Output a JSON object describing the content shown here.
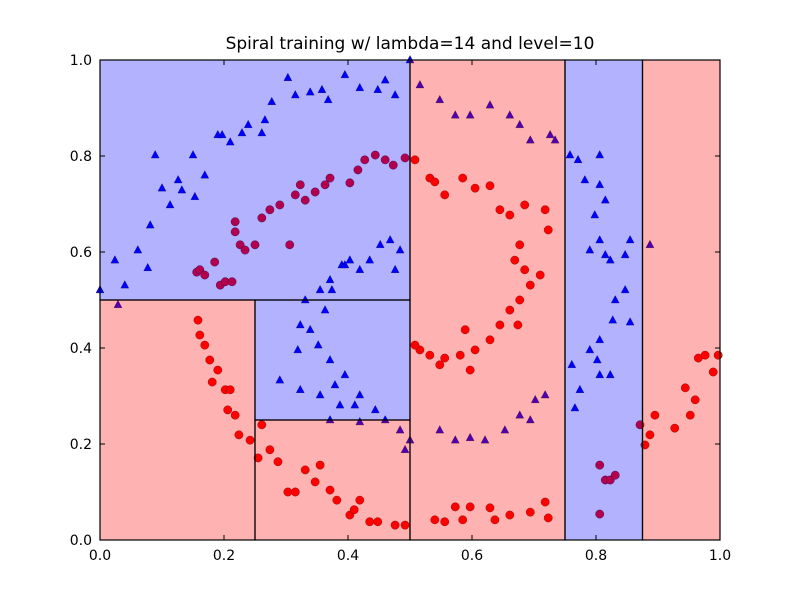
{
  "chart_data": {
    "type": "scatter",
    "title": "Spiral training w/ lambda=14 and level=10",
    "xlabel": "",
    "ylabel": "",
    "xlim": [
      0.0,
      1.0
    ],
    "ylim": [
      0.0,
      1.0
    ],
    "xticks": [
      "0.0",
      "0.2",
      "0.4",
      "0.6",
      "0.8",
      "1.0"
    ],
    "yticks": [
      "0.0",
      "0.2",
      "0.4",
      "0.6",
      "0.8",
      "1.0"
    ],
    "grid": false,
    "colors": {
      "red": "#ff0000",
      "blue": "#0000ff",
      "red_region": "#ffb3b3",
      "blue_region": "#b3b3ff"
    },
    "regions": [
      {
        "x": [
          0.0,
          0.5
        ],
        "y": [
          0.5,
          1.0
        ],
        "class": "blue"
      },
      {
        "x": [
          0.0,
          0.25
        ],
        "y": [
          0.0,
          0.5
        ],
        "class": "red"
      },
      {
        "x": [
          0.25,
          0.5
        ],
        "y": [
          0.25,
          0.5
        ],
        "class": "blue"
      },
      {
        "x": [
          0.25,
          0.5
        ],
        "y": [
          0.0,
          0.25
        ],
        "class": "red"
      },
      {
        "x": [
          0.5,
          0.75
        ],
        "y": [
          0.0,
          1.0
        ],
        "class": "red"
      },
      {
        "x": [
          0.75,
          0.875
        ],
        "y": [
          0.0,
          1.0
        ],
        "class": "blue"
      },
      {
        "x": [
          0.875,
          1.0
        ],
        "y": [
          0.0,
          1.0
        ],
        "class": "red"
      }
    ],
    "series": [
      {
        "marker": "circle",
        "color": "red",
        "points": [
          [
            0.156,
            0.558
          ],
          [
            0.161,
            0.563
          ],
          [
            0.169,
            0.552
          ],
          [
            0.185,
            0.579
          ],
          [
            0.194,
            0.531
          ],
          [
            0.202,
            0.538
          ],
          [
            0.213,
            0.538
          ],
          [
            0.218,
            0.663
          ],
          [
            0.218,
            0.642
          ],
          [
            0.226,
            0.615
          ],
          [
            0.234,
            0.604
          ],
          [
            0.25,
            0.615
          ],
          [
            0.261,
            0.671
          ],
          [
            0.274,
            0.688
          ],
          [
            0.29,
            0.698
          ],
          [
            0.306,
            0.615
          ],
          [
            0.315,
            0.719
          ],
          [
            0.323,
            0.74
          ],
          [
            0.331,
            0.708
          ],
          [
            0.347,
            0.725
          ],
          [
            0.363,
            0.74
          ],
          [
            0.371,
            0.754
          ],
          [
            0.403,
            0.744
          ],
          [
            0.416,
            0.771
          ],
          [
            0.427,
            0.792
          ],
          [
            0.444,
            0.802
          ],
          [
            0.46,
            0.792
          ],
          [
            0.473,
            0.781
          ],
          [
            0.492,
            0.796
          ],
          [
            0.508,
            0.792
          ],
          [
            0.532,
            0.754
          ],
          [
            0.54,
            0.746
          ],
          [
            0.556,
            0.719
          ],
          [
            0.585,
            0.754
          ],
          [
            0.605,
            0.733
          ],
          [
            0.629,
            0.738
          ],
          [
            0.645,
            0.688
          ],
          [
            0.661,
            0.677
          ],
          [
            0.685,
            0.698
          ],
          [
            0.718,
            0.688
          ],
          [
            0.723,
            0.646
          ],
          [
            0.677,
            0.615
          ],
          [
            0.669,
            0.583
          ],
          [
            0.685,
            0.563
          ],
          [
            0.694,
            0.531
          ],
          [
            0.677,
            0.5
          ],
          [
            0.661,
            0.479
          ],
          [
            0.645,
            0.448
          ],
          [
            0.629,
            0.417
          ],
          [
            0.605,
            0.396
          ],
          [
            0.589,
            0.438
          ],
          [
            0.581,
            0.385
          ],
          [
            0.556,
            0.379
          ],
          [
            0.532,
            0.385
          ],
          [
            0.516,
            0.396
          ],
          [
            0.508,
            0.406
          ],
          [
            0.548,
            0.365
          ],
          [
            0.597,
            0.354
          ],
          [
            0.71,
            0.552
          ],
          [
            0.674,
            0.448
          ],
          [
            0.158,
            0.458
          ],
          [
            0.161,
            0.427
          ],
          [
            0.169,
            0.406
          ],
          [
            0.177,
            0.375
          ],
          [
            0.181,
            0.329
          ],
          [
            0.19,
            0.354
          ],
          [
            0.202,
            0.313
          ],
          [
            0.21,
            0.313
          ],
          [
            0.206,
            0.271
          ],
          [
            0.218,
            0.26
          ],
          [
            0.224,
            0.219
          ],
          [
            0.242,
            0.208
          ],
          [
            0.255,
            0.171
          ],
          [
            0.261,
            0.24
          ],
          [
            0.274,
            0.188
          ],
          [
            0.287,
            0.163
          ],
          [
            0.303,
            0.1
          ],
          [
            0.315,
            0.1
          ],
          [
            0.331,
            0.146
          ],
          [
            0.347,
            0.121
          ],
          [
            0.355,
            0.156
          ],
          [
            0.371,
            0.104
          ],
          [
            0.382,
            0.083
          ],
          [
            0.403,
            0.052
          ],
          [
            0.41,
            0.063
          ],
          [
            0.419,
            0.083
          ],
          [
            0.435,
            0.038
          ],
          [
            0.448,
            0.038
          ],
          [
            0.476,
            0.031
          ],
          [
            0.492,
            0.031
          ],
          [
            0.54,
            0.042
          ],
          [
            0.556,
            0.038
          ],
          [
            0.573,
            0.069
          ],
          [
            0.585,
            0.042
          ],
          [
            0.597,
            0.069
          ],
          [
            0.629,
            0.067
          ],
          [
            0.637,
            0.042
          ],
          [
            0.661,
            0.052
          ],
          [
            0.694,
            0.058
          ],
          [
            0.718,
            0.079
          ],
          [
            0.723,
            0.046
          ],
          [
            0.806,
            0.156
          ],
          [
            0.815,
            0.125
          ],
          [
            0.823,
            0.125
          ],
          [
            0.831,
            0.135
          ],
          [
            0.806,
            0.054
          ],
          [
            0.871,
            0.24
          ],
          [
            0.879,
            0.198
          ],
          [
            0.887,
            0.219
          ],
          [
            0.895,
            0.26
          ],
          [
            0.927,
            0.233
          ],
          [
            0.944,
            0.317
          ],
          [
            0.952,
            0.26
          ],
          [
            0.96,
            0.292
          ],
          [
            0.965,
            0.379
          ],
          [
            0.976,
            0.385
          ],
          [
            0.989,
            0.35
          ],
          [
            0.997,
            0.385
          ]
        ]
      },
      {
        "marker": "triangle",
        "color": "blue",
        "points": [
          [
            0.0,
            0.521
          ],
          [
            0.029,
            0.49
          ],
          [
            0.024,
            0.583
          ],
          [
            0.04,
            0.531
          ],
          [
            0.061,
            0.604
          ],
          [
            0.081,
            0.656
          ],
          [
            0.077,
            0.567
          ],
          [
            0.089,
            0.802
          ],
          [
            0.1,
            0.733
          ],
          [
            0.113,
            0.698
          ],
          [
            0.126,
            0.75
          ],
          [
            0.132,
            0.729
          ],
          [
            0.15,
            0.802
          ],
          [
            0.153,
            0.715
          ],
          [
            0.169,
            0.76
          ],
          [
            0.19,
            0.844
          ],
          [
            0.197,
            0.844
          ],
          [
            0.21,
            0.829
          ],
          [
            0.229,
            0.848
          ],
          [
            0.239,
            0.865
          ],
          [
            0.261,
            0.848
          ],
          [
            0.266,
            0.875
          ],
          [
            0.277,
            0.913
          ],
          [
            0.303,
            0.963
          ],
          [
            0.315,
            0.927
          ],
          [
            0.339,
            0.933
          ],
          [
            0.358,
            0.938
          ],
          [
            0.368,
            0.917
          ],
          [
            0.395,
            0.969
          ],
          [
            0.419,
            0.942
          ],
          [
            0.448,
            0.938
          ],
          [
            0.46,
            0.958
          ],
          [
            0.476,
            0.927
          ],
          [
            0.5,
            1.0
          ],
          [
            0.516,
            0.948
          ],
          [
            0.548,
            0.917
          ],
          [
            0.573,
            0.885
          ],
          [
            0.597,
            0.885
          ],
          [
            0.629,
            0.906
          ],
          [
            0.661,
            0.885
          ],
          [
            0.677,
            0.865
          ],
          [
            0.694,
            0.833
          ],
          [
            0.726,
            0.844
          ],
          [
            0.734,
            0.833
          ],
          [
            0.758,
            0.802
          ],
          [
            0.771,
            0.792
          ],
          [
            0.806,
            0.802
          ],
          [
            0.782,
            0.75
          ],
          [
            0.806,
            0.74
          ],
          [
            0.815,
            0.708
          ],
          [
            0.798,
            0.677
          ],
          [
            0.806,
            0.625
          ],
          [
            0.815,
            0.594
          ],
          [
            0.79,
            0.604
          ],
          [
            0.823,
            0.583
          ],
          [
            0.847,
            0.594
          ],
          [
            0.855,
            0.625
          ],
          [
            0.887,
            0.615
          ],
          [
            0.831,
            0.5
          ],
          [
            0.847,
            0.521
          ],
          [
            0.827,
            0.458
          ],
          [
            0.855,
            0.454
          ],
          [
            0.806,
            0.417
          ],
          [
            0.79,
            0.396
          ],
          [
            0.802,
            0.375
          ],
          [
            0.761,
            0.365
          ],
          [
            0.766,
            0.275
          ],
          [
            0.774,
            0.313
          ],
          [
            0.806,
            0.344
          ],
          [
            0.823,
            0.344
          ],
          [
            0.452,
            0.615
          ],
          [
            0.468,
            0.625
          ],
          [
            0.484,
            0.604
          ],
          [
            0.435,
            0.583
          ],
          [
            0.403,
            0.583
          ],
          [
            0.39,
            0.573
          ],
          [
            0.371,
            0.542
          ],
          [
            0.355,
            0.521
          ],
          [
            0.331,
            0.5
          ],
          [
            0.323,
            0.448
          ],
          [
            0.319,
            0.396
          ],
          [
            0.339,
            0.438
          ],
          [
            0.352,
            0.406
          ],
          [
            0.371,
            0.375
          ],
          [
            0.29,
            0.333
          ],
          [
            0.323,
            0.313
          ],
          [
            0.355,
            0.302
          ],
          [
            0.379,
            0.323
          ],
          [
            0.395,
            0.344
          ],
          [
            0.387,
            0.281
          ],
          [
            0.411,
            0.281
          ],
          [
            0.419,
            0.302
          ],
          [
            0.444,
            0.271
          ],
          [
            0.46,
            0.25
          ],
          [
            0.419,
            0.246
          ],
          [
            0.371,
            0.25
          ],
          [
            0.484,
            0.229
          ],
          [
            0.492,
            0.188
          ],
          [
            0.5,
            0.208
          ],
          [
            0.548,
            0.229
          ],
          [
            0.573,
            0.208
          ],
          [
            0.597,
            0.213
          ],
          [
            0.621,
            0.208
          ],
          [
            0.653,
            0.229
          ],
          [
            0.677,
            0.26
          ],
          [
            0.702,
            0.292
          ],
          [
            0.718,
            0.302
          ],
          [
            0.694,
            0.25
          ],
          [
            0.363,
            0.479
          ],
          [
            0.374,
            0.521
          ],
          [
            0.395,
            0.573
          ],
          [
            0.419,
            0.563
          ],
          [
            0.476,
            0.563
          ]
        ]
      }
    ]
  }
}
